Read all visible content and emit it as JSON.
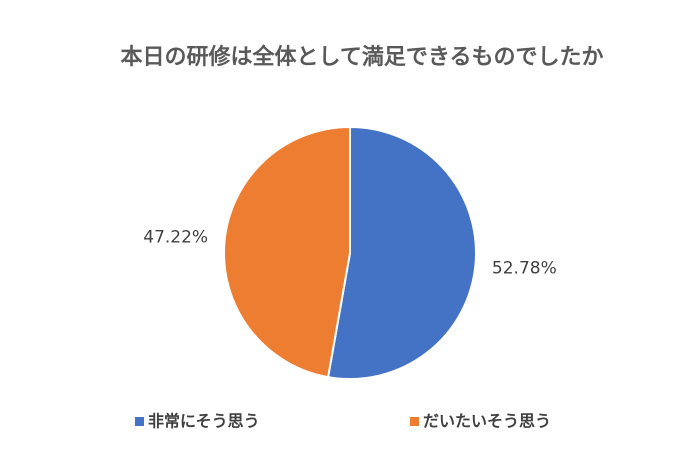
{
  "chart_data": {
    "type": "pie",
    "title": "本日の研修は全体として満足できるものでしたか",
    "categories": [
      "非常にそう思う",
      "だいたいそう思う"
    ],
    "values": [
      52.78,
      47.22
    ],
    "value_labels": [
      "52.78%",
      "47.22%"
    ],
    "colors": [
      "#4472c4",
      "#ed7d31"
    ],
    "legend": "bottom"
  }
}
